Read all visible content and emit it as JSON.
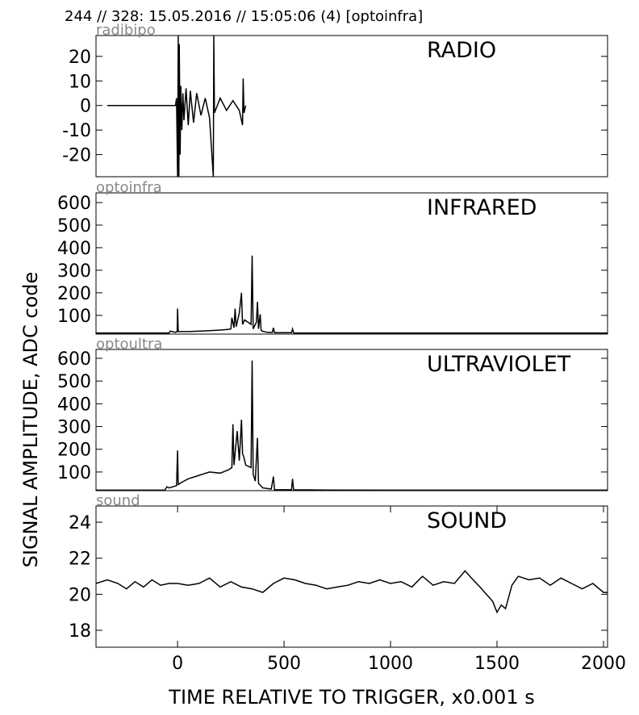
{
  "header": "244 // 328:   15.05.2016 // 15:05:06 (4)  [optoinfra]",
  "ylabel": "SIGNAL AMPLITUDE,  ADC code",
  "chart_data": [
    {
      "type": "line",
      "title": "RADIO",
      "label": "radibipo",
      "color": "#000000",
      "xlim": [
        -383,
        2019
      ],
      "ylim": [
        -29,
        28.5
      ],
      "yticks": [
        -20,
        -10,
        0,
        10,
        20
      ],
      "x": [
        -330,
        -10,
        -5,
        0,
        3,
        6,
        8,
        12,
        15,
        20,
        25,
        30,
        40,
        50,
        60,
        75,
        90,
        110,
        130,
        150,
        168,
        170,
        173,
        200,
        230,
        260,
        290,
        305,
        308,
        312,
        320
      ],
      "values": [
        0,
        0,
        3,
        -29,
        28.5,
        -29,
        25,
        -20,
        8,
        -10,
        5,
        -6,
        7,
        -8,
        6,
        -7,
        5,
        -4,
        3,
        -5,
        -29,
        28.5,
        -3,
        3,
        -2,
        2,
        -2,
        -8,
        11,
        -3,
        0
      ]
    },
    {
      "type": "line",
      "title": "INFRARED",
      "label": "optoinfra",
      "color": "#000000",
      "xlim": [
        -383,
        2019
      ],
      "ylim": [
        17,
        643
      ],
      "yticks": [
        100,
        200,
        300,
        400,
        500,
        600
      ],
      "x": [
        -383,
        -50,
        -40,
        -35,
        -10,
        -2,
        0,
        3,
        50,
        150,
        200,
        240,
        250,
        255,
        265,
        270,
        275,
        290,
        300,
        305,
        315,
        345,
        350,
        355,
        370,
        375,
        380,
        388,
        392,
        398,
        420,
        445,
        450,
        455,
        535,
        540,
        545,
        700,
        1000,
        1500,
        2019
      ],
      "values": [
        22,
        22,
        22,
        30,
        25,
        28,
        130,
        28,
        28,
        32,
        35,
        38,
        40,
        90,
        45,
        130,
        50,
        110,
        200,
        60,
        80,
        60,
        365,
        40,
        70,
        160,
        40,
        105,
        35,
        30,
        25,
        24,
        45,
        23,
        23,
        40,
        22,
        22,
        22,
        22,
        22
      ]
    },
    {
      "type": "line",
      "title": "ULTRAVIOLET",
      "label": "optoultra",
      "color": "#000000",
      "xlim": [
        -383,
        2019
      ],
      "ylim": [
        18,
        639
      ],
      "yticks": [
        100,
        200,
        300,
        400,
        500,
        600
      ],
      "x": [
        -383,
        -60,
        -50,
        -40,
        -5,
        0,
        3,
        20,
        50,
        100,
        150,
        200,
        240,
        255,
        260,
        265,
        280,
        290,
        300,
        305,
        310,
        320,
        345,
        350,
        355,
        365,
        375,
        380,
        390,
        400,
        440,
        450,
        455,
        535,
        540,
        545,
        700,
        1000,
        1500,
        2019
      ],
      "values": [
        20,
        20,
        35,
        30,
        40,
        195,
        45,
        55,
        70,
        85,
        100,
        95,
        110,
        120,
        310,
        130,
        280,
        150,
        330,
        180,
        170,
        130,
        120,
        590,
        90,
        60,
        250,
        50,
        40,
        30,
        25,
        80,
        22,
        22,
        70,
        22,
        21,
        20,
        20,
        20
      ]
    },
    {
      "type": "line",
      "title": "SOUND",
      "label": "sound",
      "color": "#000000",
      "xlim": [
        -383,
        2019
      ],
      "ylim": [
        17.06,
        24.9
      ],
      "yticks": [
        18,
        20,
        22,
        24
      ],
      "xticks": [
        0,
        500,
        1000,
        1500,
        2000
      ],
      "xlabel": "TIME RELATIVE TO TRIGGER,   x0.001 s",
      "x": [
        -383,
        -330,
        -280,
        -240,
        -200,
        -160,
        -120,
        -80,
        -40,
        0,
        50,
        100,
        150,
        200,
        250,
        300,
        350,
        400,
        450,
        500,
        550,
        600,
        650,
        700,
        750,
        800,
        850,
        900,
        950,
        1000,
        1050,
        1100,
        1150,
        1200,
        1250,
        1300,
        1350,
        1380,
        1420,
        1450,
        1480,
        1500,
        1520,
        1540,
        1570,
        1600,
        1650,
        1700,
        1750,
        1800,
        1850,
        1900,
        1950,
        2000,
        2019
      ],
      "values": [
        20.6,
        20.8,
        20.6,
        20.3,
        20.7,
        20.4,
        20.8,
        20.5,
        20.6,
        20.6,
        20.5,
        20.6,
        20.9,
        20.4,
        20.7,
        20.4,
        20.3,
        20.1,
        20.6,
        20.9,
        20.8,
        20.6,
        20.5,
        20.3,
        20.4,
        20.5,
        20.7,
        20.6,
        20.8,
        20.6,
        20.7,
        20.4,
        21.0,
        20.5,
        20.7,
        20.6,
        21.3,
        20.9,
        20.4,
        20.0,
        19.6,
        19.0,
        19.4,
        19.2,
        20.5,
        21.0,
        20.8,
        20.9,
        20.5,
        20.9,
        20.6,
        20.3,
        20.6,
        20.1,
        20.1
      ]
    }
  ]
}
